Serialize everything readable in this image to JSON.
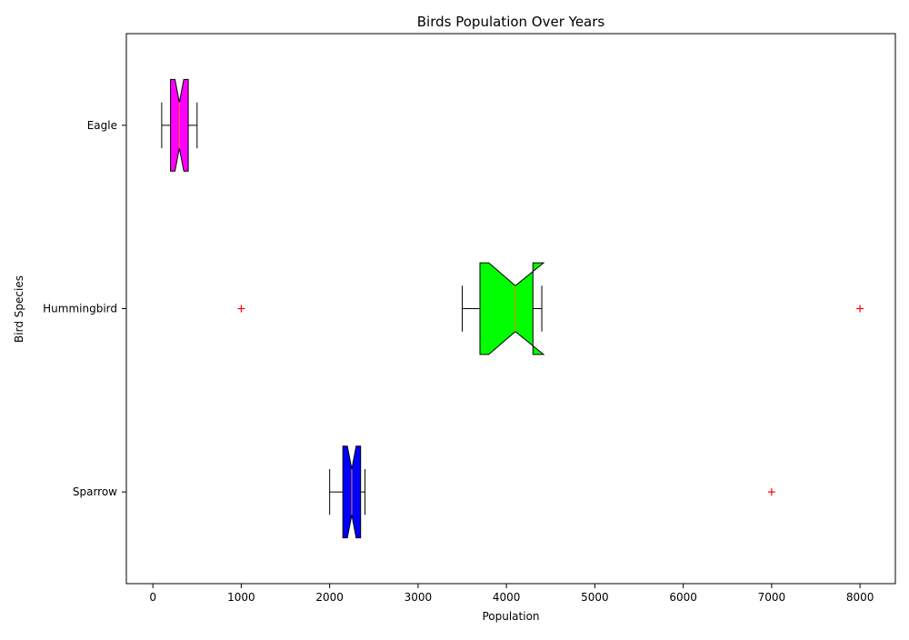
{
  "chart_data": {
    "type": "boxplot",
    "orientation": "horizontal",
    "title": "Birds Population Over Years",
    "xlabel": "Population",
    "ylabel": "Bird Species",
    "xlim": [
      -300,
      8400
    ],
    "xticks": [
      0,
      1000,
      2000,
      3000,
      4000,
      5000,
      6000,
      7000,
      8000
    ],
    "grid": false,
    "categories": [
      "Sparrow",
      "Hummingbird",
      "Eagle"
    ],
    "series": [
      {
        "category": "Sparrow",
        "whisker_low": 2000,
        "q1": 2150,
        "notch_low": 2200,
        "median": 2250,
        "notch_high": 2300,
        "q3": 2350,
        "whisker_high": 2400,
        "outliers": [
          7000
        ],
        "color": "#0000ff"
      },
      {
        "category": "Hummingbird",
        "whisker_low": 3500,
        "q1": 3700,
        "notch_low": 3800,
        "median": 4100,
        "notch_high": 4420,
        "q3": 4300,
        "whisker_high": 4400,
        "outliers": [
          1000,
          8000
        ],
        "color": "#00ff00"
      },
      {
        "category": "Eagle",
        "whisker_low": 100,
        "q1": 200,
        "notch_low": 250,
        "median": 300,
        "notch_high": 350,
        "q3": 400,
        "whisker_high": 500,
        "outliers": [],
        "color": "#ff00ff"
      }
    ],
    "outlier_color": "#ff0000",
    "median_color": "#ff7f0e"
  }
}
